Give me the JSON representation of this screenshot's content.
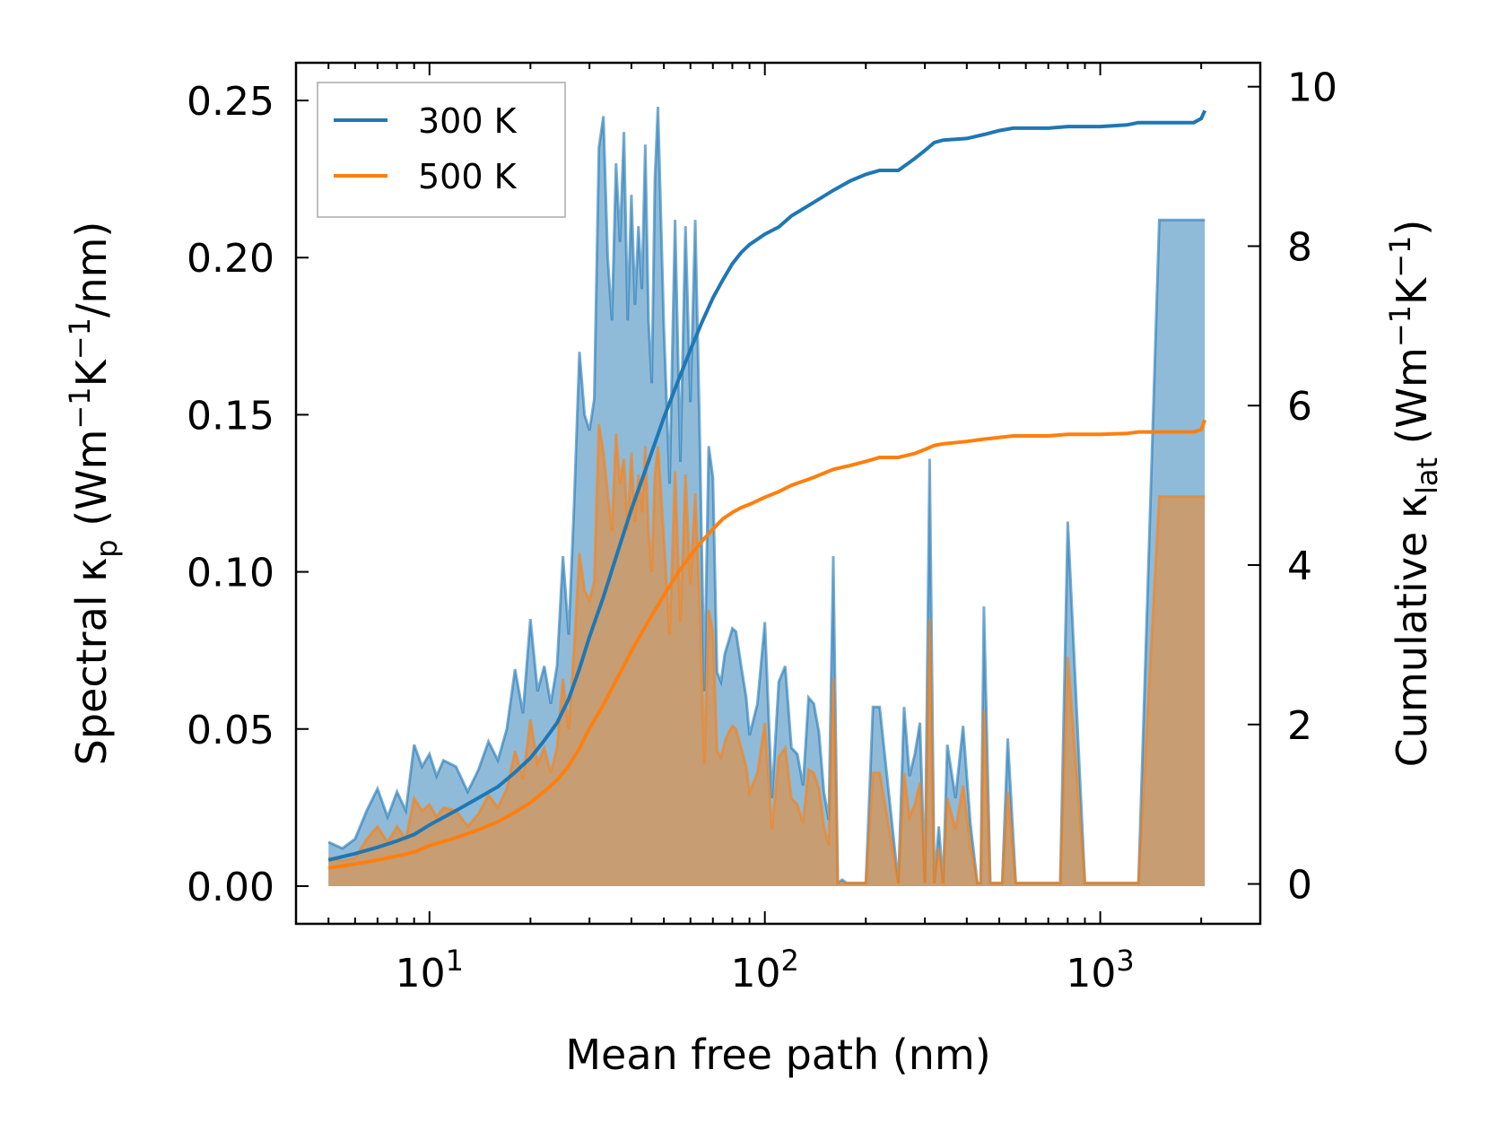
{
  "chart_data": {
    "type": "line",
    "xscale": "log",
    "xlim": [
      4,
      3000
    ],
    "xlabel": "Mean free path (nm)",
    "xticks": [
      {
        "value": 10,
        "base": "10",
        "exp": "1"
      },
      {
        "value": 100,
        "base": "10",
        "exp": "2"
      },
      {
        "value": 1000,
        "base": "10",
        "exp": "3"
      }
    ],
    "left_axis": {
      "label_main": "Spectral κ",
      "label_sub": "p",
      "label_units_pre": " (Wm",
      "label_exp1": "−1",
      "label_mid": "K",
      "label_exp2": "−1",
      "label_post": "/nm)",
      "ylim": [
        -0.012,
        0.262
      ],
      "ticks": [
        {
          "value": 0.0,
          "label": "0.00"
        },
        {
          "value": 0.05,
          "label": "0.05"
        },
        {
          "value": 0.1,
          "label": "0.10"
        },
        {
          "value": 0.15,
          "label": "0.15"
        },
        {
          "value": 0.2,
          "label": "0.20"
        },
        {
          "value": 0.25,
          "label": "0.25"
        }
      ]
    },
    "right_axis": {
      "label_main": "Cumulative κ",
      "label_sub": "lat",
      "label_units_pre": " (Wm",
      "label_exp1": "−1",
      "label_mid": "K",
      "label_exp2": "−1",
      "label_post": ")",
      "ylim": [
        -0.5,
        10.3
      ],
      "ticks": [
        {
          "value": 0,
          "label": "0"
        },
        {
          "value": 2,
          "label": "2"
        },
        {
          "value": 4,
          "label": "4"
        },
        {
          "value": 6,
          "label": "6"
        },
        {
          "value": 8,
          "label": "8"
        },
        {
          "value": 10,
          "label": "10"
        }
      ]
    },
    "colors": {
      "s300": "#1f77b4",
      "s500": "#ff7f0e",
      "fill300": "#1f77b4",
      "fill500": "#ff7f0e"
    },
    "series": [
      {
        "name": "300 K",
        "axis": "left",
        "kind": "spectral",
        "x": [
          5,
          5.5,
          6,
          6.5,
          7,
          7.5,
          8,
          8.5,
          9,
          9.5,
          10,
          10.5,
          11,
          12,
          13,
          14,
          15,
          16,
          17,
          18,
          19,
          20,
          21,
          22,
          23,
          24,
          25,
          26,
          27,
          28,
          29,
          30,
          31,
          32,
          33,
          34,
          35,
          36,
          37,
          38,
          39,
          40,
          41,
          42,
          43,
          44,
          45,
          46,
          47,
          48,
          50,
          52,
          54,
          56,
          58,
          60,
          62,
          64,
          66,
          68,
          70,
          72,
          74,
          76,
          78,
          80,
          82,
          85,
          88,
          90,
          95,
          100,
          105,
          110,
          115,
          120,
          125,
          130,
          135,
          140,
          145,
          150,
          155,
          160,
          165,
          170,
          175,
          180,
          185,
          190,
          195,
          200,
          210,
          220,
          250,
          260,
          270,
          280,
          290,
          300,
          310,
          320,
          330,
          340,
          350,
          370,
          390,
          410,
          430,
          440,
          450,
          470,
          490,
          510,
          530,
          560,
          600,
          700,
          760,
          800,
          900,
          1100,
          1200,
          1250,
          1300,
          1500,
          1900,
          2000,
          2050
        ],
        "values": [
          0.014,
          0.012,
          0.015,
          0.024,
          0.031,
          0.022,
          0.03,
          0.024,
          0.045,
          0.038,
          0.042,
          0.035,
          0.04,
          0.038,
          0.03,
          0.037,
          0.046,
          0.04,
          0.05,
          0.069,
          0.055,
          0.085,
          0.062,
          0.07,
          0.058,
          0.07,
          0.105,
          0.08,
          0.122,
          0.17,
          0.15,
          0.145,
          0.155,
          0.235,
          0.245,
          0.2,
          0.18,
          0.23,
          0.205,
          0.24,
          0.18,
          0.22,
          0.185,
          0.21,
          0.19,
          0.236,
          0.18,
          0.16,
          0.225,
          0.248,
          0.178,
          0.128,
          0.212,
          0.135,
          0.21,
          0.154,
          0.212,
          0.142,
          0.062,
          0.14,
          0.13,
          0.068,
          0.065,
          0.074,
          0.078,
          0.082,
          0.081,
          0.07,
          0.06,
          0.048,
          0.058,
          0.084,
          0.028,
          0.065,
          0.07,
          0.044,
          0.042,
          0.032,
          0.06,
          0.058,
          0.049,
          0.03,
          0.021,
          0.105,
          0.001,
          0.002,
          0.001,
          0.001,
          0.001,
          0.001,
          0.001,
          0.001,
          0.057,
          0.057,
          0.001,
          0.057,
          0.035,
          0.042,
          0.052,
          0.001,
          0.136,
          0.001,
          0.019,
          0.001,
          0.045,
          0.028,
          0.051,
          0.02,
          0.001,
          0.001,
          0.089,
          0.001,
          0.001,
          0.001,
          0.047,
          0.001,
          0.001,
          0.001,
          0.001,
          0.116,
          0.001,
          0.001,
          0.001,
          0.001,
          0.001,
          0.212,
          0.212,
          0.212,
          0.212
        ],
        "legend": true
      },
      {
        "name": "500 K",
        "axis": "left",
        "kind": "spectral",
        "x": [
          5,
          5.5,
          6,
          6.5,
          7,
          7.5,
          8,
          8.5,
          9,
          9.5,
          10,
          10.5,
          11,
          12,
          13,
          14,
          15,
          16,
          17,
          18,
          19,
          20,
          21,
          22,
          23,
          24,
          25,
          26,
          27,
          28,
          29,
          30,
          31,
          32,
          33,
          34,
          35,
          36,
          37,
          38,
          39,
          40,
          41,
          42,
          43,
          44,
          45,
          46,
          47,
          48,
          50,
          52,
          54,
          56,
          58,
          60,
          62,
          64,
          66,
          68,
          70,
          72,
          74,
          76,
          78,
          80,
          82,
          85,
          88,
          90,
          95,
          100,
          105,
          110,
          115,
          120,
          125,
          130,
          135,
          140,
          145,
          150,
          155,
          160,
          165,
          170,
          175,
          180,
          185,
          190,
          195,
          200,
          210,
          220,
          250,
          260,
          270,
          280,
          290,
          300,
          310,
          320,
          330,
          340,
          350,
          370,
          390,
          410,
          430,
          440,
          450,
          470,
          490,
          510,
          530,
          560,
          600,
          700,
          760,
          800,
          900,
          1100,
          1200,
          1250,
          1300,
          1500,
          1900,
          2000,
          2050
        ],
        "values": [
          0.009,
          0.008,
          0.009,
          0.015,
          0.019,
          0.014,
          0.019,
          0.015,
          0.028,
          0.024,
          0.026,
          0.022,
          0.025,
          0.024,
          0.019,
          0.023,
          0.029,
          0.025,
          0.031,
          0.043,
          0.034,
          0.053,
          0.039,
          0.044,
          0.036,
          0.044,
          0.066,
          0.05,
          0.076,
          0.106,
          0.094,
          0.091,
          0.097,
          0.147,
          0.138,
          0.125,
          0.113,
          0.144,
          0.128,
          0.136,
          0.113,
          0.138,
          0.116,
          0.131,
          0.119,
          0.14,
          0.113,
          0.1,
          0.131,
          0.14,
          0.111,
          0.08,
          0.132,
          0.084,
          0.131,
          0.096,
          0.125,
          0.089,
          0.039,
          0.088,
          0.081,
          0.043,
          0.041,
          0.046,
          0.049,
          0.051,
          0.05,
          0.044,
          0.038,
          0.03,
          0.036,
          0.052,
          0.018,
          0.041,
          0.044,
          0.028,
          0.026,
          0.02,
          0.037,
          0.036,
          0.031,
          0.019,
          0.013,
          0.066,
          0.001,
          0.001,
          0.001,
          0.001,
          0.001,
          0.001,
          0.001,
          0.001,
          0.036,
          0.036,
          0.001,
          0.036,
          0.022,
          0.026,
          0.033,
          0.001,
          0.085,
          0.001,
          0.012,
          0.001,
          0.028,
          0.018,
          0.032,
          0.013,
          0.001,
          0.001,
          0.056,
          0.001,
          0.001,
          0.001,
          0.03,
          0.001,
          0.001,
          0.001,
          0.001,
          0.073,
          0.001,
          0.001,
          0.001,
          0.001,
          0.001,
          0.124,
          0.124,
          0.124,
          0.124
        ],
        "legend": true
      },
      {
        "name": "300 K cumulative",
        "axis": "right",
        "kind": "cumulative",
        "x": [
          5,
          6,
          7,
          8,
          9,
          10,
          12,
          14,
          16,
          18,
          20,
          22,
          24,
          26,
          28,
          30,
          33,
          36,
          40,
          45,
          50,
          55,
          60,
          65,
          70,
          75,
          80,
          85,
          90,
          100,
          110,
          120,
          140,
          160,
          180,
          200,
          220,
          250,
          280,
          300,
          320,
          340,
          400,
          450,
          500,
          550,
          700,
          800,
          1000,
          1200,
          1300,
          1500,
          1900,
          2000,
          2050
        ],
        "values": [
          0.3,
          0.38,
          0.46,
          0.54,
          0.62,
          0.74,
          0.92,
          1.08,
          1.22,
          1.4,
          1.58,
          1.8,
          2.02,
          2.32,
          2.7,
          3.1,
          3.6,
          4.1,
          4.7,
          5.3,
          5.85,
          6.3,
          6.7,
          7.05,
          7.35,
          7.58,
          7.78,
          7.92,
          8.02,
          8.15,
          8.24,
          8.38,
          8.55,
          8.7,
          8.82,
          8.9,
          8.95,
          8.95,
          9.1,
          9.2,
          9.3,
          9.33,
          9.35,
          9.4,
          9.45,
          9.48,
          9.48,
          9.5,
          9.5,
          9.52,
          9.55,
          9.55,
          9.55,
          9.6,
          9.7
        ],
        "legend": false
      },
      {
        "name": "500 K cumulative",
        "axis": "right",
        "kind": "cumulative",
        "x": [
          5,
          6,
          7,
          8,
          9,
          10,
          12,
          14,
          16,
          18,
          20,
          22,
          24,
          26,
          28,
          30,
          33,
          36,
          40,
          45,
          50,
          55,
          60,
          65,
          70,
          75,
          80,
          85,
          90,
          100,
          110,
          120,
          140,
          160,
          180,
          200,
          220,
          250,
          280,
          300,
          320,
          340,
          400,
          450,
          500,
          550,
          700,
          800,
          1000,
          1200,
          1300,
          1500,
          1900,
          2000,
          2050
        ],
        "values": [
          0.2,
          0.25,
          0.3,
          0.35,
          0.4,
          0.48,
          0.58,
          0.68,
          0.78,
          0.9,
          1.02,
          1.16,
          1.3,
          1.48,
          1.7,
          1.95,
          2.25,
          2.55,
          2.92,
          3.3,
          3.62,
          3.9,
          4.12,
          4.3,
          4.45,
          4.58,
          4.66,
          4.72,
          4.76,
          4.85,
          4.92,
          5.0,
          5.1,
          5.2,
          5.25,
          5.3,
          5.35,
          5.35,
          5.4,
          5.45,
          5.5,
          5.52,
          5.55,
          5.58,
          5.6,
          5.62,
          5.62,
          5.64,
          5.64,
          5.65,
          5.67,
          5.67,
          5.67,
          5.7,
          5.82
        ],
        "legend": false
      }
    ]
  }
}
